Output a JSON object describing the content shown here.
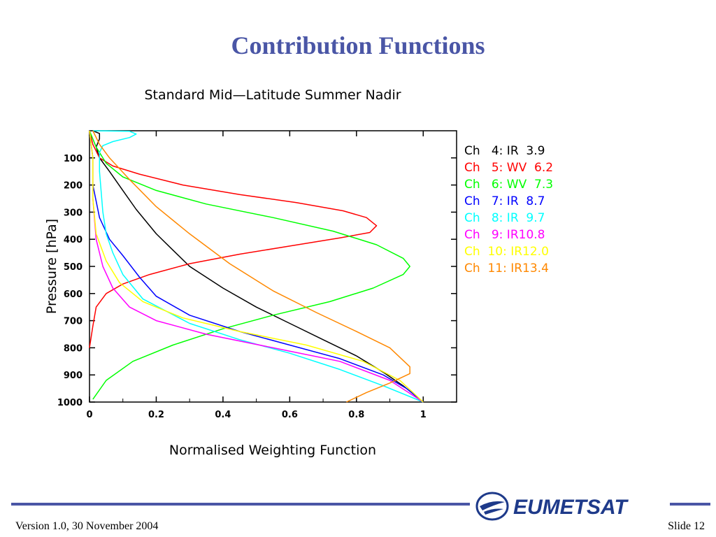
{
  "slide": {
    "title": "Contribution Functions",
    "footer_left": "Version 1.0, 30 November 2004",
    "footer_right": "Slide 12",
    "logo_text": "EUMETSAT",
    "accent_color": "#4a56a6"
  },
  "chart_data": {
    "type": "line",
    "title": "Standard Mid—Latitude Summer Nadir",
    "xlabel": "Normalised Weighting Function",
    "ylabel": "Pressure [hPa]",
    "xlim": [
      0,
      1.1
    ],
    "ylim": [
      1000,
      0
    ],
    "x_ticks": [
      0,
      0.2,
      0.4,
      0.6,
      0.8,
      1
    ],
    "x_tick_labels": [
      "0",
      "0.2",
      "0.4",
      "0.6",
      "0.8",
      "1"
    ],
    "y_ticks": [
      100,
      200,
      300,
      400,
      500,
      600,
      700,
      800,
      900,
      1000
    ],
    "y_tick_labels": [
      "100",
      "200",
      "300",
      "400",
      "500",
      "600",
      "700",
      "800",
      "900",
      "1000"
    ],
    "grid": false,
    "legend_position": "right",
    "series": [
      {
        "name": "Ch   4: IR  3.9",
        "color": "#000000",
        "points": [
          [
            0.01,
            0
          ],
          [
            0.03,
            10
          ],
          [
            0.03,
            30
          ],
          [
            0.02,
            60
          ],
          [
            0.03,
            100
          ],
          [
            0.06,
            150
          ],
          [
            0.1,
            220
          ],
          [
            0.14,
            290
          ],
          [
            0.2,
            380
          ],
          [
            0.25,
            440
          ],
          [
            0.3,
            500
          ],
          [
            0.4,
            580
          ],
          [
            0.5,
            650
          ],
          [
            0.6,
            710
          ],
          [
            0.7,
            770
          ],
          [
            0.8,
            830
          ],
          [
            0.88,
            890
          ],
          [
            0.94,
            940
          ],
          [
            1.0,
            1000
          ]
        ]
      },
      {
        "name": "Ch   5: WV  6.2",
        "color": "#ff0000",
        "points": [
          [
            0,
            0
          ],
          [
            0.01,
            50
          ],
          [
            0.03,
            100
          ],
          [
            0.07,
            130
          ],
          [
            0.15,
            160
          ],
          [
            0.28,
            200
          ],
          [
            0.45,
            235
          ],
          [
            0.62,
            265
          ],
          [
            0.76,
            295
          ],
          [
            0.83,
            320
          ],
          [
            0.86,
            350
          ],
          [
            0.84,
            375
          ],
          [
            0.75,
            395
          ],
          [
            0.6,
            425
          ],
          [
            0.45,
            455
          ],
          [
            0.3,
            490
          ],
          [
            0.18,
            530
          ],
          [
            0.1,
            565
          ],
          [
            0.05,
            600
          ],
          [
            0.02,
            650
          ],
          [
            0.01,
            720
          ],
          [
            0,
            800
          ]
        ]
      },
      {
        "name": "Ch   6: WV  7.3",
        "color": "#00ff00",
        "points": [
          [
            0,
            0
          ],
          [
            0.02,
            60
          ],
          [
            0.05,
            120
          ],
          [
            0.1,
            170
          ],
          [
            0.2,
            220
          ],
          [
            0.35,
            270
          ],
          [
            0.55,
            320
          ],
          [
            0.73,
            370
          ],
          [
            0.86,
            420
          ],
          [
            0.94,
            470
          ],
          [
            0.96,
            500
          ],
          [
            0.94,
            530
          ],
          [
            0.85,
            580
          ],
          [
            0.72,
            630
          ],
          [
            0.55,
            680
          ],
          [
            0.4,
            730
          ],
          [
            0.25,
            790
          ],
          [
            0.13,
            850
          ],
          [
            0.05,
            920
          ],
          [
            0.01,
            990
          ]
        ]
      },
      {
        "name": "Ch   7: IR  8.7",
        "color": "#0000ff",
        "points": [
          [
            0,
            0
          ],
          [
            0.01,
            100
          ],
          [
            0.01,
            200
          ],
          [
            0.03,
            320
          ],
          [
            0.06,
            400
          ],
          [
            0.1,
            460
          ],
          [
            0.15,
            540
          ],
          [
            0.2,
            610
          ],
          [
            0.3,
            680
          ],
          [
            0.45,
            740
          ],
          [
            0.6,
            790
          ],
          [
            0.75,
            840
          ],
          [
            0.88,
            900
          ],
          [
            0.95,
            950
          ],
          [
            1.0,
            1000
          ]
        ]
      },
      {
        "name": "Ch   8: IR  9.7",
        "color": "#00ffff",
        "points": [
          [
            0.01,
            0
          ],
          [
            0.12,
            2
          ],
          [
            0.14,
            12
          ],
          [
            0.12,
            25
          ],
          [
            0.07,
            40
          ],
          [
            0.04,
            55
          ],
          [
            0.03,
            80
          ],
          [
            0.03,
            150
          ],
          [
            0.04,
            300
          ],
          [
            0.05,
            380
          ],
          [
            0.07,
            450
          ],
          [
            0.1,
            530
          ],
          [
            0.16,
            620
          ],
          [
            0.3,
            710
          ],
          [
            0.45,
            770
          ],
          [
            0.6,
            820
          ],
          [
            0.75,
            880
          ],
          [
            0.88,
            940
          ],
          [
            1.0,
            1000
          ]
        ]
      },
      {
        "name": "Ch   9: IR10.8",
        "color": "#ff00ff",
        "points": [
          [
            0,
            0
          ],
          [
            0.01,
            100
          ],
          [
            0.01,
            250
          ],
          [
            0.02,
            400
          ],
          [
            0.04,
            500
          ],
          [
            0.07,
            580
          ],
          [
            0.12,
            650
          ],
          [
            0.2,
            700
          ],
          [
            0.35,
            750
          ],
          [
            0.55,
            800
          ],
          [
            0.75,
            850
          ],
          [
            0.9,
            920
          ],
          [
            1.0,
            1000
          ]
        ]
      },
      {
        "name": "Ch  10: IR12.0",
        "color": "#ffff00",
        "points": [
          [
            0,
            0
          ],
          [
            0.01,
            100
          ],
          [
            0.01,
            250
          ],
          [
            0.02,
            380
          ],
          [
            0.05,
            480
          ],
          [
            0.09,
            560
          ],
          [
            0.16,
            630
          ],
          [
            0.28,
            690
          ],
          [
            0.45,
            740
          ],
          [
            0.65,
            790
          ],
          [
            0.82,
            850
          ],
          [
            0.93,
            920
          ],
          [
            1.0,
            1000
          ]
        ]
      },
      {
        "name": "Ch  11: IR13.4",
        "color": "#ff8800",
        "points": [
          [
            0.01,
            0
          ],
          [
            0.03,
            50
          ],
          [
            0.06,
            100
          ],
          [
            0.12,
            180
          ],
          [
            0.2,
            280
          ],
          [
            0.3,
            380
          ],
          [
            0.42,
            490
          ],
          [
            0.55,
            590
          ],
          [
            0.68,
            670
          ],
          [
            0.8,
            740
          ],
          [
            0.9,
            800
          ],
          [
            0.96,
            870
          ],
          [
            0.96,
            895
          ],
          [
            0.9,
            930
          ],
          [
            0.83,
            965
          ],
          [
            0.77,
            1000
          ]
        ]
      }
    ]
  }
}
